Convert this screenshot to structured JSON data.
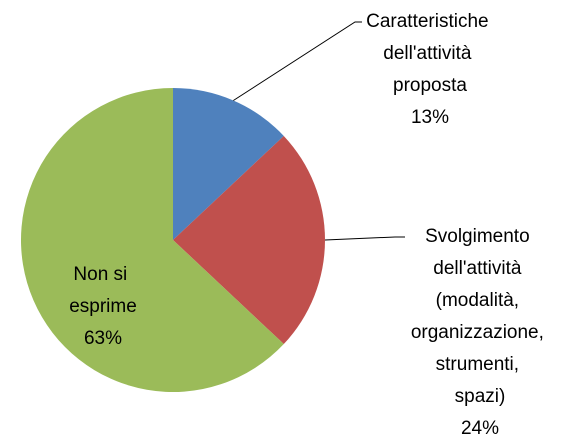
{
  "chart_data": {
    "type": "pie",
    "categories": [
      "Caratteristiche dell'attività proposta",
      "Svolgimento dell'attività (modalità, organizzazione, strumenti, spazi)",
      "Non si esprime"
    ],
    "values": [
      13,
      24,
      63
    ],
    "value_labels": [
      "13%",
      "24%",
      "63%"
    ],
    "colors": [
      "#4f81bd",
      "#c0504d",
      "#9bbb59"
    ]
  }
}
